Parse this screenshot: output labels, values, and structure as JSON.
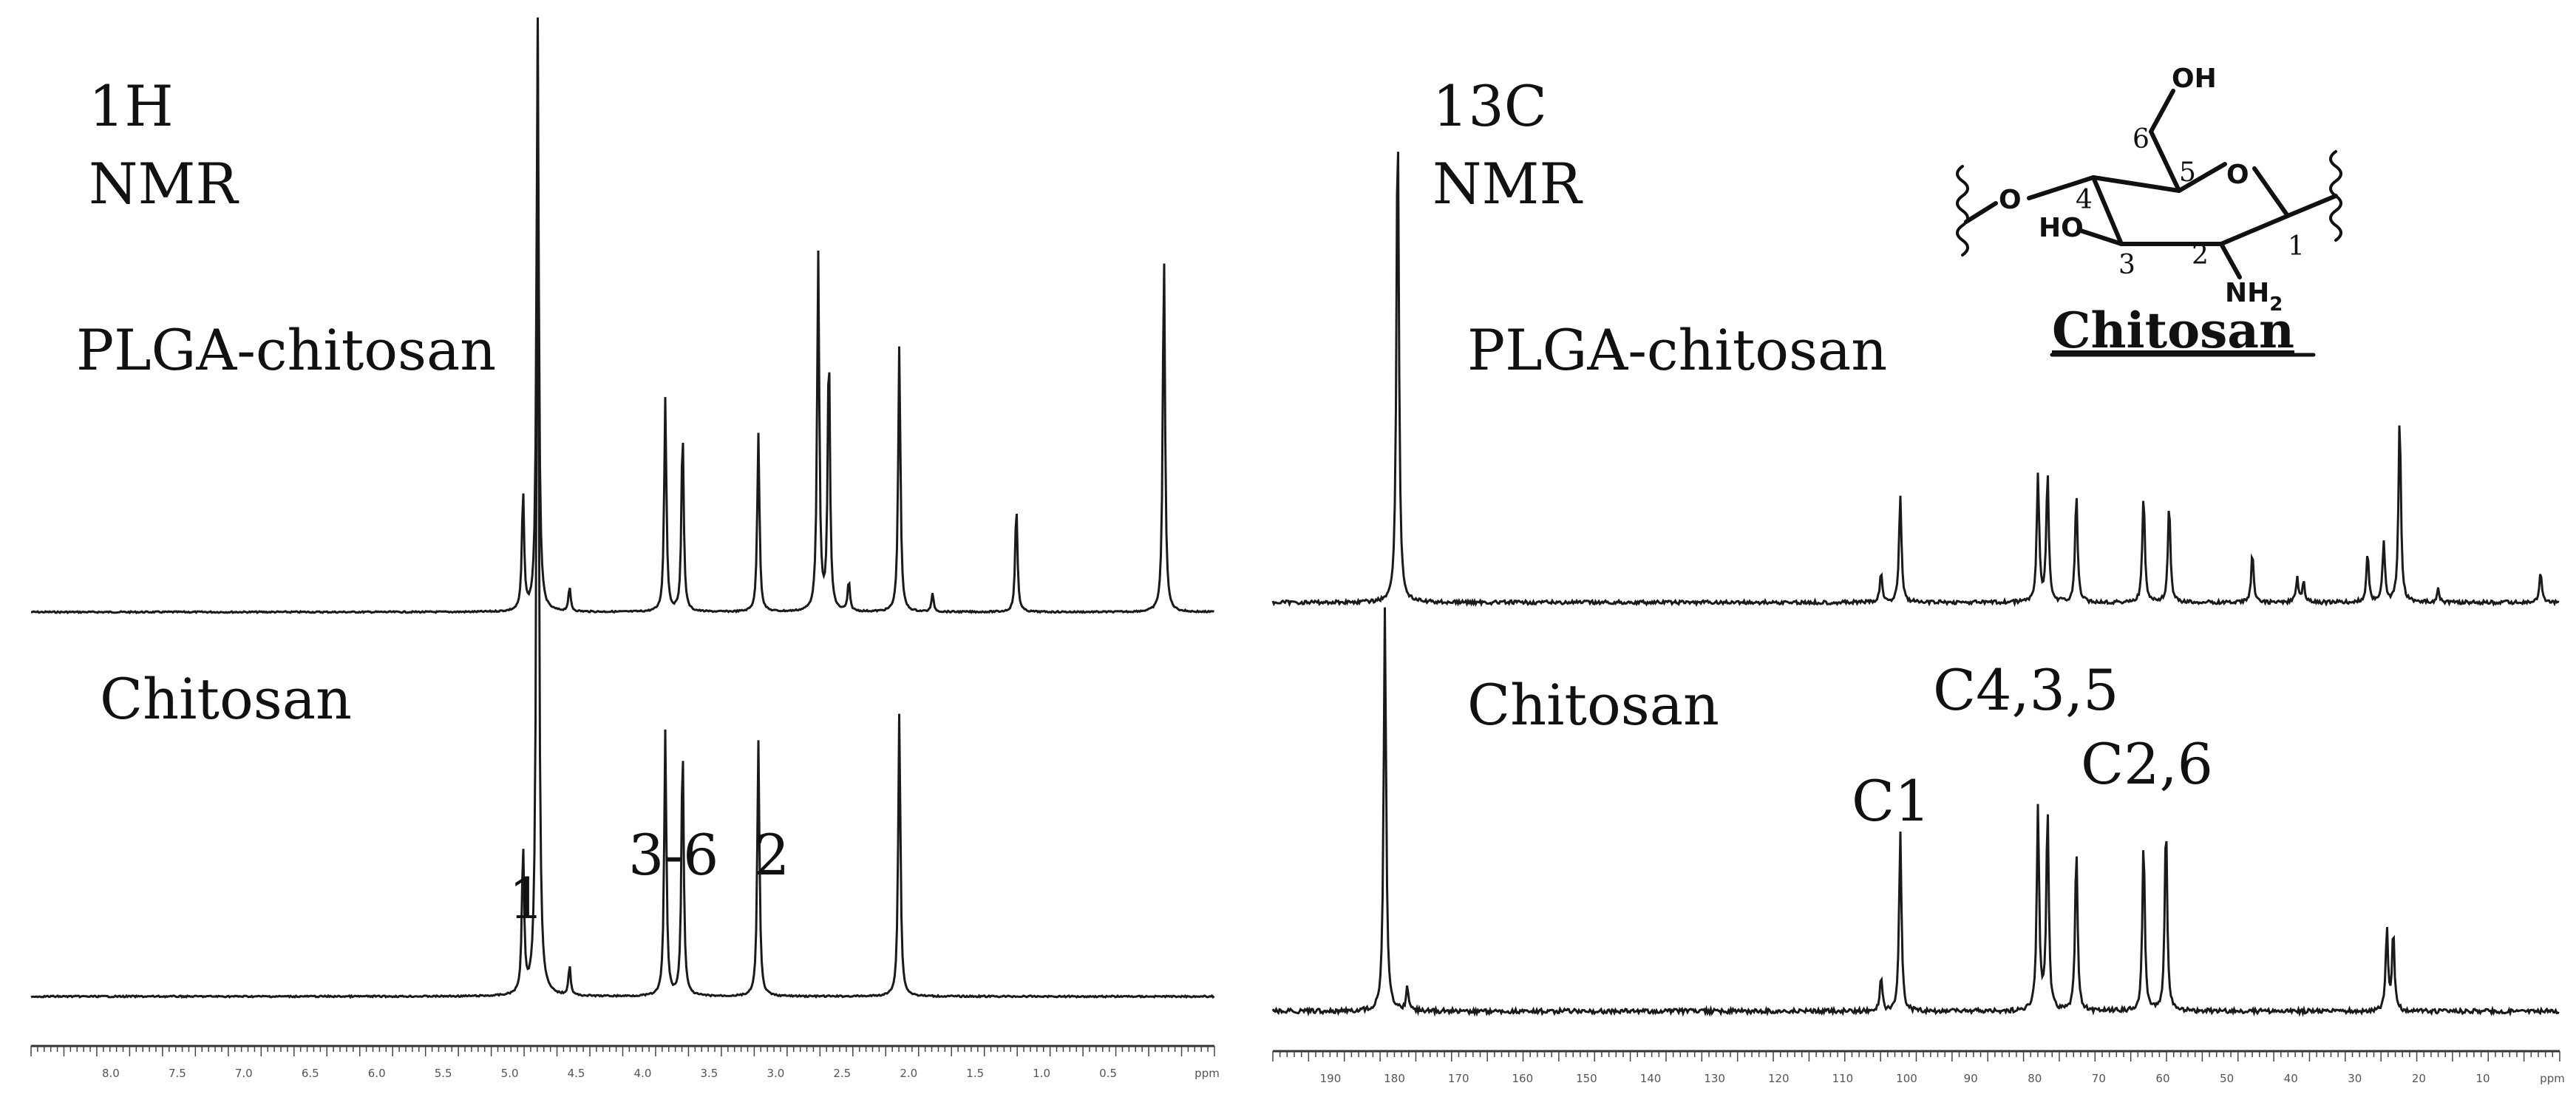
{
  "panels": {
    "h1": {
      "nucleus": "1H",
      "method": "NMR",
      "top_label": "PLGA-chitosan",
      "bottom_label": "Chitosan",
      "peak_labels": {
        "p1": "1",
        "p36": "3-6",
        "p2": "2"
      },
      "unit": "ppm"
    },
    "c13": {
      "nucleus": "13C",
      "method": "NMR",
      "top_label": "PLGA-chitosan",
      "bottom_label": "Chitosan",
      "peak_labels": {
        "c1": "C1",
        "c435": "C4,3,5",
        "c26": "C2,6"
      },
      "unit": "ppm"
    }
  },
  "structure": {
    "title": "Chitosan",
    "oh_top": "OH",
    "o_ring": "O",
    "o_link": "O",
    "ho": "HO",
    "nh2": "NH",
    "nh2_sub": "2",
    "positions": [
      "1",
      "2",
      "3",
      "4",
      "5",
      "6"
    ]
  },
  "chart_data": [
    {
      "type": "line",
      "title": "1H NMR",
      "xlabel": "ppm",
      "x_reversed": true,
      "xlim": [
        8.6,
        -0.3
      ],
      "xticks": [
        "8.0",
        "7.5",
        "7.0",
        "6.5",
        "6.0",
        "5.5",
        "5.0",
        "4.5",
        "4.0",
        "3.5",
        "3.0",
        "2.5",
        "2.0",
        "1.5",
        "1.0",
        "0.5",
        "ppm"
      ],
      "series": [
        {
          "name": "PLGA-chitosan",
          "peaks": [
            {
              "ppm": 4.79,
              "height": 1.0
            },
            {
              "ppm": 4.9,
              "height": 0.2
            },
            {
              "ppm": 4.55,
              "height": 0.04
            },
            {
              "ppm": 3.83,
              "height": 0.36
            },
            {
              "ppm": 3.7,
              "height": 0.31
            },
            {
              "ppm": 3.13,
              "height": 0.3
            },
            {
              "ppm": 2.68,
              "height": 0.6
            },
            {
              "ppm": 2.6,
              "height": 0.45
            },
            {
              "ppm": 2.45,
              "height": 0.05
            },
            {
              "ppm": 2.07,
              "height": 0.45
            },
            {
              "ppm": 1.82,
              "height": 0.03
            },
            {
              "ppm": 1.19,
              "height": 0.18
            },
            {
              "ppm": 0.08,
              "height": 0.61
            }
          ]
        },
        {
          "name": "Chitosan",
          "peaks": [
            {
              "ppm": 4.79,
              "height": 1.0
            },
            {
              "ppm": 4.9,
              "height": 0.15
            },
            {
              "ppm": 4.55,
              "height": 0.03
            },
            {
              "ppm": 3.83,
              "height": 0.27
            },
            {
              "ppm": 3.7,
              "height": 0.26
            },
            {
              "ppm": 3.13,
              "height": 0.26
            },
            {
              "ppm": 2.07,
              "height": 0.29
            }
          ]
        }
      ]
    },
    {
      "type": "line",
      "title": "13C NMR",
      "xlabel": "ppm",
      "x_reversed": true,
      "xlim": [
        199,
        -2
      ],
      "xticks": [
        "190",
        "180",
        "170",
        "160",
        "150",
        "140",
        "130",
        "120",
        "110",
        "100",
        "90",
        "80",
        "70",
        "60",
        "50",
        "40",
        "30",
        "20",
        "10",
        "ppm"
      ],
      "series": [
        {
          "name": "PLGA-chitosan",
          "peaks": [
            {
              "ppm": 179.5,
              "height": 1.0
            },
            {
              "ppm": 104,
              "height": 0.06
            },
            {
              "ppm": 101,
              "height": 0.22
            },
            {
              "ppm": 79.5,
              "height": 0.26
            },
            {
              "ppm": 78,
              "height": 0.26
            },
            {
              "ppm": 73.5,
              "height": 0.22
            },
            {
              "ppm": 63,
              "height": 0.22
            },
            {
              "ppm": 59,
              "height": 0.2
            },
            {
              "ppm": 46,
              "height": 0.1
            },
            {
              "ppm": 39,
              "height": 0.05
            },
            {
              "ppm": 38,
              "height": 0.04
            },
            {
              "ppm": 28,
              "height": 0.1
            },
            {
              "ppm": 25.5,
              "height": 0.12
            },
            {
              "ppm": 23,
              "height": 0.38
            },
            {
              "ppm": 17,
              "height": 0.03
            },
            {
              "ppm": 1,
              "height": 0.06
            }
          ]
        },
        {
          "name": "Chitosan",
          "peaks": [
            {
              "ppm": 181.5,
              "height": 1.0
            },
            {
              "ppm": 178,
              "height": 0.06
            },
            {
              "ppm": 104,
              "height": 0.08
            },
            {
              "ppm": 101,
              "height": 0.44
            },
            {
              "ppm": 79.5,
              "height": 0.5
            },
            {
              "ppm": 78,
              "height": 0.5
            },
            {
              "ppm": 73.5,
              "height": 0.4
            },
            {
              "ppm": 63,
              "height": 0.42
            },
            {
              "ppm": 59.5,
              "height": 0.47
            },
            {
              "ppm": 25,
              "height": 0.2
            },
            {
              "ppm": 24,
              "height": 0.19
            }
          ]
        }
      ]
    }
  ]
}
